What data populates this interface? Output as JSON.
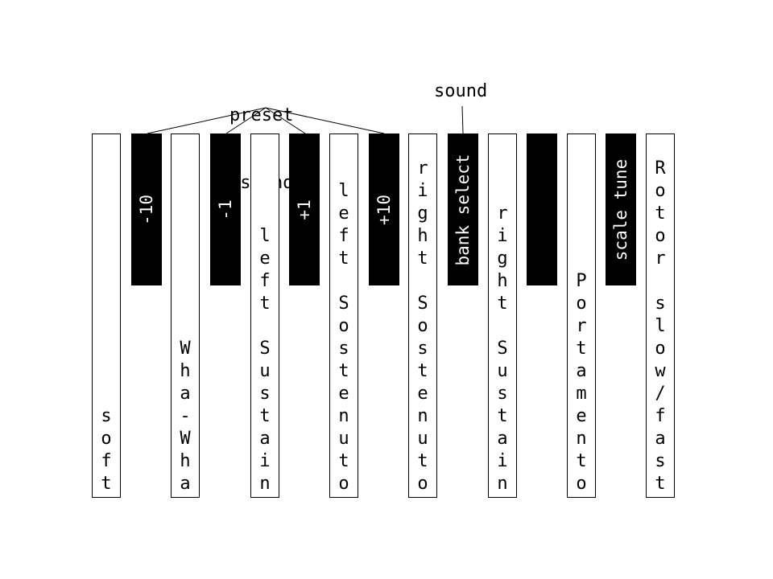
{
  "annotations": {
    "preset_line1": "preset",
    "preset_line2": "/sound",
    "sound": "sound"
  },
  "white_keys": [
    {
      "id": "soft",
      "label": "soft",
      "align": "bottom"
    },
    {
      "id": "wha-wha",
      "label": "Wha-Wha",
      "align": "bottom"
    },
    {
      "id": "left-sustain",
      "label": "left Sustain",
      "align": "bottom"
    },
    {
      "id": "left-sostenuto",
      "label": "left Sostenuto",
      "align": "bottom"
    },
    {
      "id": "right-sostenuto",
      "label": "right Sostenuto",
      "align": "bottom"
    },
    {
      "id": "right-sustain",
      "label": "right Sustain",
      "align": "bottom"
    },
    {
      "id": "portamento",
      "label": "Portamento",
      "align": "bottom"
    },
    {
      "id": "rotor-slow-fast",
      "label": "Rotor slow/fast",
      "align": "bottom"
    }
  ],
  "black_keys": [
    {
      "id": "minus-10",
      "label": "-10"
    },
    {
      "id": "minus-1",
      "label": "-1"
    },
    {
      "id": "plus-1",
      "label": "+1"
    },
    {
      "id": "plus-10",
      "label": "+10"
    },
    {
      "id": "bank-select",
      "label": "bank select"
    },
    {
      "id": "blank",
      "label": ""
    },
    {
      "id": "scale-tune",
      "label": "scale tune"
    }
  ],
  "colors": {
    "key_white": "#ffffff",
    "key_black": "#000000",
    "outline": "#000000",
    "text_on_black": "#ffffff"
  }
}
